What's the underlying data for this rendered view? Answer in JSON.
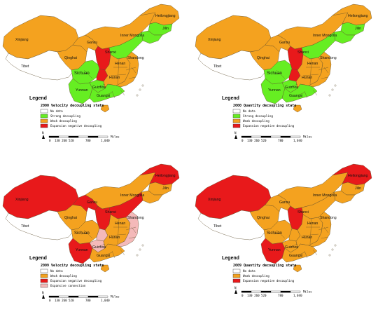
{
  "colors": {
    "no_data": "#ffffff",
    "strong_decoupling": "#66ee22",
    "weak_decoupling": "#f4a21f",
    "expansion_negative_decoupling": "#e8191b",
    "expansive_connection": "#f4b9b9"
  },
  "common": {
    "legend_heading": "Legend",
    "scale_label": "Miles",
    "scale_ticks": [
      "0",
      "130 260",
      "520",
      "780",
      "1,040"
    ],
    "north_symbol": "N",
    "region_labels": {
      "xinjiang": "Xinjiang",
      "tibet": "Tibet",
      "qinghai": "Qinghai",
      "inner_mongolia": "Inner Mongolia",
      "heilongjiang": "Heilongjiang",
      "jilin": "Jilin",
      "sichuan": "Sichuan",
      "yunnan": "Yunnan",
      "guizhou": "Guizhou",
      "hunan": "Hunan",
      "henan": "Henan",
      "shandong": "Shandong",
      "guangxi": "Guangxi",
      "gansu": "Gansu",
      "shanxi": "Shanxi"
    }
  },
  "maps": [
    {
      "subtitle": "2000 Velocity decoupling state",
      "legend": [
        "No data",
        "Strong decoupling",
        "Weak decoupling",
        "Expansion negative decoupling"
      ],
      "legend_colors": [
        "no_data",
        "strong_decoupling",
        "weak_decoupling",
        "expansion_negative_decoupling"
      ],
      "regions": {
        "xinjiang": "weak_decoupling",
        "tibet": "no_data",
        "qinghai": "weak_decoupling",
        "gansu": "weak_decoupling",
        "inner_mongolia": "weak_decoupling",
        "heilongjiang": "weak_decoupling",
        "jilin": "strong_decoupling",
        "liaoning": "strong_decoupling",
        "north_china": "strong_decoupling",
        "ningxia_shaanxi": "expansion_negative_decoupling",
        "sichuan": "strong_decoupling",
        "chongqing": "expansion_negative_decoupling",
        "yunnan": "strong_decoupling",
        "guizhou": "strong_decoupling",
        "central": "weak_decoupling",
        "east": "weak_decoupling",
        "south": "strong_decoupling",
        "hainan": "weak_decoupling"
      }
    },
    {
      "subtitle": "2000 Quantity decoupling state",
      "legend": [
        "No data",
        "Strong decoupling",
        "Weak decoupling",
        "Expansion negative decoupling"
      ],
      "legend_colors": [
        "no_data",
        "strong_decoupling",
        "weak_decoupling",
        "expansion_negative_decoupling"
      ],
      "regions": {
        "xinjiang": "weak_decoupling",
        "tibet": "no_data",
        "qinghai": "weak_decoupling",
        "gansu": "weak_decoupling",
        "inner_mongolia": "weak_decoupling",
        "heilongjiang": "weak_decoupling",
        "jilin": "strong_decoupling",
        "liaoning": "strong_decoupling",
        "north_china": "strong_decoupling",
        "ningxia_shaanxi": "expansion_negative_decoupling",
        "sichuan": "strong_decoupling",
        "chongqing": "expansion_negative_decoupling",
        "yunnan": "strong_decoupling",
        "guizhou": "strong_decoupling",
        "central": "weak_decoupling",
        "east": "weak_decoupling",
        "south": "strong_decoupling",
        "hainan": "weak_decoupling"
      }
    },
    {
      "subtitle": "2009 Velocity decoupling state",
      "legend": [
        "No data",
        "Weak decoupling",
        "Expansion negative decoupling",
        "Expansive connection"
      ],
      "legend_colors": [
        "no_data",
        "weak_decoupling",
        "expansion_negative_decoupling",
        "expansive_connection"
      ],
      "regions": {
        "xinjiang": "expansion_negative_decoupling",
        "tibet": "no_data",
        "qinghai": "weak_decoupling",
        "gansu": "expansion_negative_decoupling",
        "inner_mongolia": "weak_decoupling",
        "heilongjiang": "expansion_negative_decoupling",
        "jilin": "weak_decoupling",
        "liaoning": "weak_decoupling",
        "north_china": "expansion_negative_decoupling",
        "ningxia_shaanxi": "expansion_negative_decoupling",
        "sichuan": "weak_decoupling",
        "chongqing": "expansive_connection",
        "yunnan": "expansion_negative_decoupling",
        "guizhou": "expansive_connection",
        "central": "weak_decoupling",
        "east": "expansive_connection",
        "south": "weak_decoupling",
        "hainan": "weak_decoupling"
      }
    },
    {
      "subtitle": "2009 Quantity decoupling state",
      "legend": [
        "No data",
        "Weak decoupling",
        "Expansion negative decoupling"
      ],
      "legend_colors": [
        "no_data",
        "weak_decoupling",
        "expansion_negative_decoupling"
      ],
      "regions": {
        "xinjiang": "expansion_negative_decoupling",
        "tibet": "no_data",
        "qinghai": "weak_decoupling",
        "gansu": "weak_decoupling",
        "inner_mongolia": "weak_decoupling",
        "heilongjiang": "expansion_negative_decoupling",
        "jilin": "weak_decoupling",
        "liaoning": "weak_decoupling",
        "north_china": "weak_decoupling",
        "ningxia_shaanxi": "expansion_negative_decoupling",
        "sichuan": "weak_decoupling",
        "chongqing": "weak_decoupling",
        "yunnan": "expansion_negative_decoupling",
        "guizhou": "weak_decoupling",
        "central": "weak_decoupling",
        "east": "weak_decoupling",
        "south": "weak_decoupling",
        "hainan": "weak_decoupling"
      }
    }
  ]
}
